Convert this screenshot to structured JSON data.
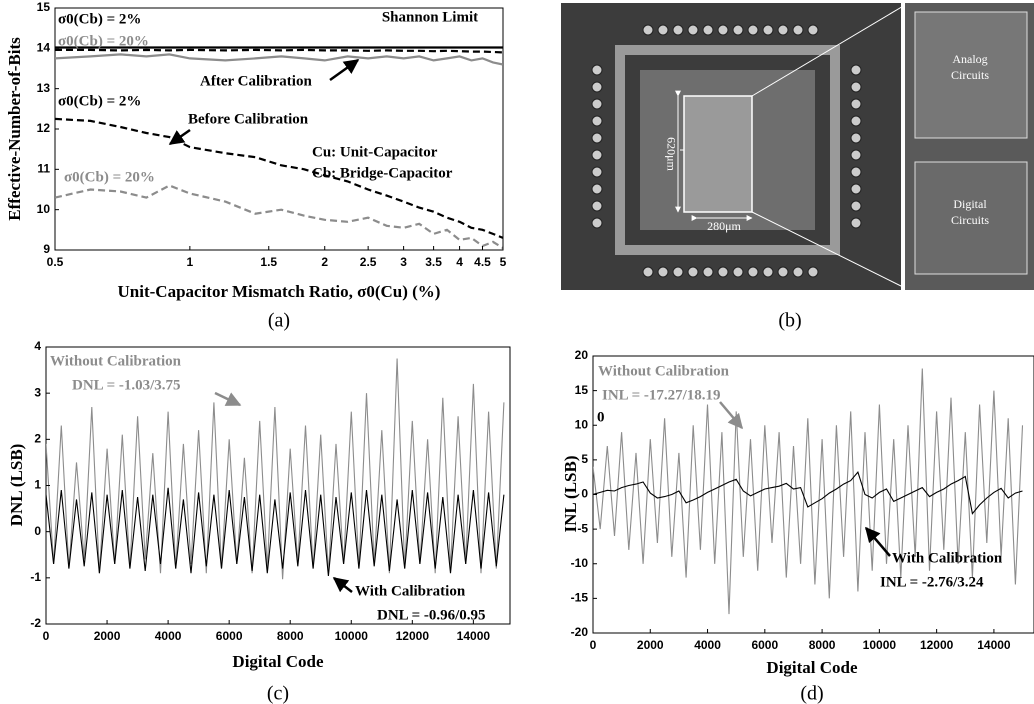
{
  "chart_data": [
    {
      "type": "line",
      "x_log": true,
      "x_label": "Unit-Capacitor Mismatch Ratio, σ0(Cu) (%)",
      "y_label": "Effective-Number-of-Bits",
      "panel_label": "(a)",
      "xlim": [
        0.5,
        5
      ],
      "xticks": [
        0.5,
        1,
        1.5,
        2,
        2.5,
        3,
        3.5,
        4,
        4.5,
        5
      ],
      "ylim": [
        9,
        15
      ],
      "yticks": [
        9,
        10,
        11,
        12,
        13,
        14,
        15
      ],
      "x": [
        0.5,
        0.6,
        0.7,
        0.8,
        0.9,
        1,
        1.2,
        1.4,
        1.6,
        1.8,
        2,
        2.25,
        2.5,
        2.75,
        3,
        3.25,
        3.5,
        3.75,
        4,
        4.25,
        4.5,
        4.75,
        5
      ],
      "series": [
        {
          "name": "Shannon Limit",
          "color": "#000000",
          "dash": "solid",
          "x": [
            0.5,
            5
          ],
          "values": [
            14.02,
            14.02
          ]
        },
        {
          "color": "#000000",
          "dash": "dashed",
          "values": [
            13.96,
            13.96,
            13.95,
            13.96,
            13.95,
            13.96,
            13.95,
            13.96,
            13.95,
            13.96,
            13.95,
            13.95,
            13.94,
            13.95,
            13.94,
            13.94,
            13.93,
            13.94,
            13.93,
            13.92,
            13.92,
            13.91,
            13.9
          ]
        },
        {
          "color": "#8c8c8c",
          "dash": "solid",
          "values": [
            13.75,
            13.8,
            13.85,
            13.8,
            13.85,
            13.75,
            13.7,
            13.75,
            13.8,
            13.75,
            13.7,
            13.8,
            13.75,
            13.8,
            13.75,
            13.8,
            13.7,
            13.75,
            13.8,
            13.7,
            13.75,
            13.65,
            13.6
          ]
        },
        {
          "color": "#000000",
          "dash": "dashed",
          "values": [
            12.25,
            12.2,
            12.05,
            11.9,
            11.8,
            11.55,
            11.4,
            11.3,
            11.1,
            11.0,
            10.85,
            10.7,
            10.5,
            10.35,
            10.2,
            10.05,
            9.95,
            9.8,
            9.7,
            9.55,
            9.5,
            9.4,
            9.3
          ]
        },
        {
          "color": "#8c8c8c",
          "dash": "dashed",
          "values": [
            10.3,
            10.5,
            10.45,
            10.3,
            10.6,
            10.4,
            10.2,
            9.9,
            10.0,
            9.85,
            9.75,
            9.7,
            9.8,
            9.6,
            9.55,
            9.65,
            9.4,
            9.5,
            9.25,
            9.3,
            9.1,
            9.2,
            9.05
          ]
        }
      ],
      "annotations": [
        "σ0(Cb) = 2%",
        "σ0(Cb) = 20%",
        "After Calibration",
        "σ0(Cb) = 2%",
        "Before Calibration",
        "Cu: Unit-Capacitor",
        "Cb: Bridge-Capacitor",
        "σ0(Cb) = 20%"
      ]
    },
    {
      "type": "line",
      "x_label": "Digital Code",
      "y_label": "DNL (LSB)",
      "panel_label": "(c)",
      "xlim": [
        0,
        15200
      ],
      "xticks": [
        0,
        2000,
        4000,
        6000,
        8000,
        10000,
        12000,
        14000
      ],
      "ylim": [
        -2,
        4
      ],
      "yticks": [
        -2,
        -1,
        0,
        1,
        2,
        3,
        4
      ],
      "x": [
        0,
        250,
        500,
        750,
        1000,
        1250,
        1500,
        1750,
        2000,
        2250,
        2500,
        2750,
        3000,
        3250,
        3500,
        3750,
        4000,
        4250,
        4500,
        4750,
        5000,
        5250,
        5500,
        5750,
        6000,
        6250,
        6500,
        6750,
        7000,
        7250,
        7500,
        7750,
        8000,
        8250,
        8500,
        8750,
        9000,
        9250,
        9500,
        9750,
        10000,
        10250,
        10500,
        10750,
        11000,
        11250,
        11500,
        11750,
        12000,
        12250,
        12500,
        12750,
        13000,
        13250,
        13500,
        13750,
        14000,
        14250,
        14500,
        14750,
        15000
      ],
      "series": [
        {
          "color": "#8c8c8c",
          "dash": "solid",
          "values": [
            1.9,
            -0.7,
            2.3,
            -0.8,
            1.5,
            -0.6,
            2.7,
            -0.9,
            1.8,
            -0.7,
            2.1,
            -0.8,
            2.5,
            -0.6,
            1.7,
            -0.9,
            2.6,
            -0.8,
            1.9,
            -0.7,
            2.2,
            -0.9,
            2.8,
            -0.8,
            2.0,
            -0.7,
            1.6,
            -0.9,
            2.4,
            -0.8,
            2.7,
            -1.03,
            1.8,
            -0.7,
            2.3,
            -0.8,
            2.1,
            -0.9,
            1.9,
            -0.7,
            2.6,
            -0.8,
            3.0,
            -0.7,
            2.2,
            -0.9,
            3.75,
            -0.8,
            2.4,
            -0.7,
            2.0,
            -0.9,
            2.9,
            -0.8,
            2.5,
            -0.7,
            3.2,
            -0.9,
            2.6,
            -0.8,
            2.8
          ]
        },
        {
          "color": "#000000",
          "dash": "solid",
          "values": [
            0.8,
            -0.7,
            0.9,
            -0.8,
            0.7,
            -0.75,
            0.85,
            -0.9,
            0.8,
            -0.7,
            0.9,
            -0.8,
            0.75,
            -0.85,
            0.8,
            -0.7,
            0.95,
            -0.8,
            0.7,
            -0.9,
            0.85,
            -0.75,
            0.8,
            -0.8,
            0.9,
            -0.7,
            0.75,
            -0.85,
            0.8,
            -0.9,
            0.7,
            -0.8,
            0.85,
            -0.75,
            0.9,
            -0.8,
            0.8,
            -0.96,
            0.75,
            -0.7,
            0.85,
            -0.8,
            0.9,
            -0.75,
            0.8,
            -0.85,
            0.7,
            -0.8,
            0.9,
            -0.7,
            0.85,
            -0.8,
            0.75,
            -0.9,
            0.8,
            -0.7,
            0.9,
            -0.8,
            0.85,
            -0.75,
            0.8
          ]
        }
      ],
      "annotations": [
        "Without Calibration",
        "DNL = -1.03/3.75",
        "With Calibration",
        "DNL = -0.96/0.95"
      ]
    },
    {
      "type": "line",
      "x_label": "Digital Code",
      "y_label": "INL (LSB)",
      "panel_label": "(d)",
      "xlim": [
        0,
        15400
      ],
      "xticks": [
        0,
        2000,
        4000,
        6000,
        8000,
        10000,
        12000,
        14000
      ],
      "ylim": [
        -20,
        20
      ],
      "yticks": [
        -20,
        -15,
        -10,
        -5,
        0,
        5,
        10,
        15,
        20
      ],
      "x": [
        0,
        250,
        500,
        750,
        1000,
        1250,
        1500,
        1750,
        2000,
        2250,
        2500,
        2750,
        3000,
        3250,
        3500,
        3750,
        4000,
        4250,
        4500,
        4750,
        5000,
        5250,
        5500,
        5750,
        6000,
        6250,
        6500,
        6750,
        7000,
        7250,
        7500,
        7750,
        8000,
        8250,
        8500,
        8750,
        9000,
        9250,
        9500,
        9750,
        10000,
        10250,
        10500,
        10750,
        11000,
        11250,
        11500,
        11750,
        12000,
        12250,
        12500,
        12750,
        13000,
        13250,
        13500,
        13750,
        14000,
        14250,
        14500,
        14750,
        15000
      ],
      "series": [
        {
          "color": "#8c8c8c",
          "dash": "solid",
          "values": [
            4,
            -5,
            7,
            -6,
            9,
            -8,
            6,
            -10,
            8,
            -7,
            11,
            -9,
            6,
            -12,
            10,
            -8,
            13,
            -10,
            9,
            -17.27,
            12,
            -9,
            8,
            -11,
            10,
            -7,
            9,
            -12,
            7,
            -10,
            11,
            -13,
            8,
            -15,
            10,
            -9,
            12,
            -14,
            9,
            -11,
            13,
            -10,
            8,
            -12,
            10,
            -9,
            18.19,
            -11,
            12,
            -8,
            14,
            -10,
            9,
            -12,
            13,
            -7,
            15,
            -9,
            11,
            -13,
            10
          ]
        },
        {
          "color": "#000000",
          "dash": "solid",
          "values": [
            0,
            0.3,
            0.6,
            0.5,
            1.0,
            1.3,
            1.5,
            1.8,
            0.2,
            -0.5,
            -0.3,
            0,
            0.5,
            -1.2,
            -0.8,
            -0.3,
            0.3,
            0.8,
            1.3,
            1.8,
            2.2,
            0.5,
            -0.2,
            0.3,
            0.8,
            1.0,
            1.2,
            1.6,
            0.8,
            1.0,
            -1.8,
            -1.2,
            -0.6,
            0.2,
            0.8,
            1.5,
            2.0,
            3.24,
            0,
            -0.5,
            0.3,
            0.8,
            -1.0,
            -0.5,
            0,
            0.5,
            1.0,
            -0.3,
            0.3,
            0.8,
            1.5,
            2.0,
            2.6,
            -2.76,
            -1.5,
            -0.5,
            0.3,
            0.9,
            -0.5,
            0.2,
            0.5
          ]
        }
      ],
      "annotations": [
        "Without Calibration",
        "INL = -17.27/18.19",
        "0",
        "With Calibration",
        "INL = -2.76/3.24"
      ]
    }
  ],
  "photo": {
    "panel_label": "(b)",
    "height_label": "620μm",
    "width_label": "280μm",
    "analog_label": [
      "Analog",
      "Circuits"
    ],
    "digital_label": [
      "Digital",
      "Circuits"
    ]
  }
}
